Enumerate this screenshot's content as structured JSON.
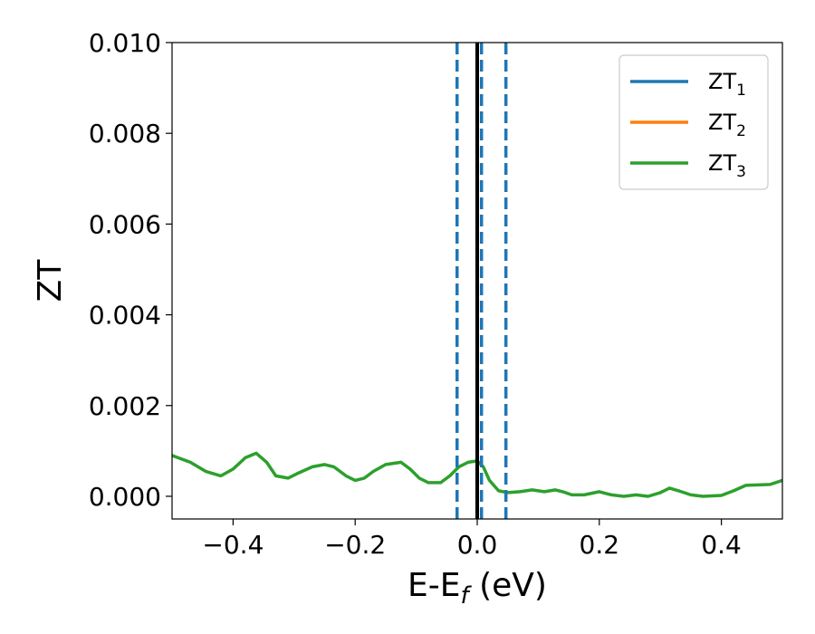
{
  "chart_data": {
    "type": "line",
    "xlabel": "E-E",
    "xlabel_sub": "f",
    "xlabel_unit": " (eV)",
    "ylabel": "ZT",
    "xlim": [
      -0.5,
      0.5
    ],
    "ylim": [
      -0.0005,
      0.01
    ],
    "xticks": [
      -0.4,
      -0.2,
      0.0,
      0.2,
      0.4
    ],
    "xtick_labels": [
      "−0.4",
      "−0.2",
      "0.0",
      "0.2",
      "0.4"
    ],
    "yticks": [
      0.0,
      0.002,
      0.004,
      0.006,
      0.008,
      0.01
    ],
    "ytick_labels": [
      "0.000",
      "0.002",
      "0.004",
      "0.006",
      "0.008",
      "0.010"
    ],
    "legend_position": "top-right",
    "grid": false,
    "series": [
      {
        "name": "ZT",
        "sub": "1",
        "color": "#1f77b4",
        "x": [],
        "y": []
      },
      {
        "name": "ZT",
        "sub": "2",
        "color": "#ff7f0e",
        "x": [],
        "y": []
      },
      {
        "name": "ZT",
        "sub": "3",
        "color": "#2ca02c",
        "x": [
          -0.5,
          -0.47,
          -0.445,
          -0.42,
          -0.4,
          -0.38,
          -0.362,
          -0.345,
          -0.33,
          -0.31,
          -0.295,
          -0.27,
          -0.25,
          -0.235,
          -0.215,
          -0.2,
          -0.185,
          -0.17,
          -0.15,
          -0.125,
          -0.11,
          -0.095,
          -0.08,
          -0.06,
          -0.045,
          -0.03,
          -0.015,
          0.0,
          0.01,
          0.02,
          0.035,
          0.05,
          0.07,
          0.09,
          0.11,
          0.128,
          0.14,
          0.155,
          0.175,
          0.2,
          0.22,
          0.24,
          0.26,
          0.28,
          0.3,
          0.315,
          0.33,
          0.35,
          0.37,
          0.4,
          0.42,
          0.44,
          0.46,
          0.48,
          0.5
        ],
        "y": [
          0.0009,
          0.00075,
          0.00055,
          0.00045,
          0.0006,
          0.00085,
          0.00095,
          0.00075,
          0.00045,
          0.0004,
          0.0005,
          0.00065,
          0.0007,
          0.00065,
          0.00045,
          0.00035,
          0.0004,
          0.00055,
          0.0007,
          0.00075,
          0.0006,
          0.0004,
          0.0003,
          0.0003,
          0.00045,
          0.00065,
          0.00075,
          0.00078,
          0.00065,
          0.00035,
          0.00012,
          8e-05,
          0.0001,
          0.00014,
          0.0001,
          0.00014,
          0.0001,
          3e-05,
          3e-05,
          0.0001,
          3e-05,
          0.0,
          3e-05,
          0.0,
          8e-05,
          0.00018,
          0.00012,
          3e-05,
          0.0,
          2e-05,
          0.00012,
          0.00024,
          0.00025,
          0.00026,
          0.00035
        ]
      }
    ],
    "vlines": [
      {
        "x": -0.033,
        "style": "dashed",
        "color": "#1f77b4"
      },
      {
        "x": 0.007,
        "style": "dashed",
        "color": "#1f77b4"
      },
      {
        "x": 0.047,
        "style": "dashed",
        "color": "#1f77b4"
      },
      {
        "x": 0.0,
        "style": "solid",
        "color": "#000000"
      }
    ]
  }
}
